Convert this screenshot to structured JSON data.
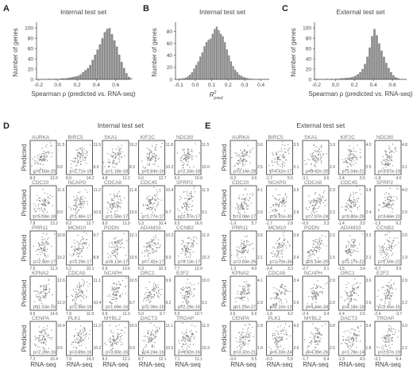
{
  "histograms": [
    {
      "label": "A",
      "title": "Internal test set",
      "ylabel": "Number of genes",
      "xlabel": "Spearman ρ (predicted vs. RNA-seq)",
      "xticks": [
        "-0.2",
        "0.0",
        "0.2",
        "0.4",
        "0.6"
      ],
      "xtick_values": [
        -0.2,
        0.0,
        0.2,
        0.4,
        0.6
      ],
      "yticks": [
        "0",
        "20",
        "40",
        "60",
        "80",
        "100"
      ],
      "ytick_values": [
        0,
        20,
        40,
        60,
        80,
        100
      ],
      "xlim": [
        -0.22,
        0.75
      ],
      "ylim": [
        0,
        105
      ]
    },
    {
      "label": "B",
      "title": "Internal test set",
      "ylabel": "Number of genes",
      "xlabel_main": "R",
      "xlabel_sup": "2",
      "xlabel_sub": "pred",
      "xticks": [
        "-0.1",
        "0.0",
        "0.1",
        "0.2",
        "0.3",
        "0.4"
      ],
      "xtick_values": [
        -0.1,
        0.0,
        0.1,
        0.2,
        0.3,
        0.4
      ],
      "yticks": [
        "0",
        "20",
        "40",
        "60",
        "80"
      ],
      "ytick_values": [
        0,
        20,
        40,
        60,
        80
      ],
      "xlim": [
        -0.12,
        0.45
      ],
      "ylim": [
        0,
        90
      ]
    },
    {
      "label": "C",
      "title": "External test set",
      "ylabel": "Number of genes",
      "xlabel": "Spearman ρ (predicted vs. RNA-seq)",
      "xticks": [
        "-0.2",
        "0.0",
        "0.2",
        "0.4",
        "0.6"
      ],
      "xtick_values": [
        -0.2,
        0.0,
        0.2,
        0.4,
        0.6
      ],
      "yticks": [
        "0",
        "20",
        "40",
        "60",
        "80",
        "100"
      ],
      "ytick_values": [
        0,
        20,
        40,
        60,
        80,
        100
      ],
      "xlim": [
        -0.22,
        0.75
      ],
      "ylim": [
        0,
        105
      ]
    }
  ],
  "chart_data": [
    {
      "type": "bar",
      "panel": "A",
      "title": "Internal test set",
      "xlabel": "Spearman ρ (predicted vs. RNA-seq)",
      "ylabel": "Number of genes",
      "bin_start": -0.1,
      "bin_width": 0.025,
      "values": [
        1,
        0,
        1,
        1,
        0,
        2,
        2,
        2,
        3,
        4,
        5,
        6,
        7,
        10,
        14,
        18,
        22,
        28,
        38,
        48,
        58,
        68,
        80,
        92,
        98,
        100,
        88,
        76,
        64,
        48,
        34,
        22,
        12,
        5,
        2
      ]
    },
    {
      "type": "bar",
      "panel": "B",
      "title": "Internal test set",
      "xlabel": "R2pred",
      "ylabel": "Number of genes",
      "bin_start": -0.1,
      "bin_width": 0.0125,
      "values": [
        1,
        1,
        2,
        3,
        5,
        8,
        12,
        18,
        24,
        30,
        38,
        45,
        55,
        62,
        66,
        68,
        76,
        84,
        88,
        82,
        76,
        72,
        62,
        50,
        40,
        30,
        22,
        16,
        12,
        8,
        6,
        4,
        3,
        2,
        1,
        1
      ]
    },
    {
      "type": "bar",
      "panel": "C",
      "title": "External test set",
      "xlabel": "Spearman ρ (predicted vs. RNA-seq)",
      "ylabel": "Number of genes",
      "bin_start": -0.1,
      "bin_width": 0.025,
      "values": [
        1,
        0,
        1,
        0,
        1,
        1,
        2,
        2,
        3,
        3,
        4,
        5,
        7,
        10,
        14,
        20,
        30,
        44,
        62,
        84,
        98,
        86,
        70,
        56,
        44,
        32,
        22,
        14,
        8,
        4,
        2
      ]
    }
  ],
  "scatter_panels": [
    {
      "label": "D",
      "title": "Internal test set",
      "ylabel": "Predicted",
      "xlabel": "RNA-seq",
      "genes": [
        {
          "name": "AURKA",
          "p": "p=6.50e-20",
          "xt": [
            "8.0",
            "12.6"
          ],
          "yt": [
            "11.5",
            "9.0"
          ],
          "corr": 0.55
        },
        {
          "name": "BIRC5",
          "p": "p=2.71e-19",
          "xt": [
            "8.0",
            "14.2"
          ],
          "yt": [
            "11.5",
            "9.9"
          ],
          "corr": 0.55
        },
        {
          "name": "SKA1",
          "p": "p=1.18e-18",
          "xt": [
            "4.8",
            "11.2"
          ],
          "yt": [
            "10.2",
            "8.3"
          ],
          "corr": 0.5
        },
        {
          "name": "KIF2C",
          "p": "p=2.24e-16",
          "xt": [
            "6.0",
            "12.7"
          ],
          "yt": [
            "11.8",
            "10.2"
          ],
          "corr": 0.45
        },
        {
          "name": "NDC80",
          "p": "p=2.33e-18",
          "xt": [
            "6.0",
            "10.8"
          ],
          "yt": [
            "11.5",
            "10.0"
          ],
          "corr": 0.5
        },
        {
          "name": "CDC20",
          "p": "p=5.04e-18",
          "xt": [
            "7.8",
            "13.2"
          ],
          "yt": [
            "11.5",
            "9.0"
          ],
          "corr": 0.5
        },
        {
          "name": "NCAPG",
          "p": "p=1.46e-17",
          "xt": [
            "8.2",
            "12.7"
          ],
          "yt": [
            "11.2",
            "10.5"
          ],
          "corr": 0.5
        },
        {
          "name": "CDCA8",
          "p": "p=1.59e-17",
          "xt": [
            "8.0",
            "11.9"
          ],
          "yt": [
            "11.8",
            "10.6"
          ],
          "corr": 0.5
        },
        {
          "name": "CDC45",
          "p": "p=1.77e-17",
          "xt": [
            "5.3",
            "10.4"
          ],
          "yt": [
            "10.4",
            "9.7"
          ],
          "corr": 0.45
        },
        {
          "name": "SFRP2",
          "p": "p=2.37e-17",
          "xt": [
            "6.5",
            "16.6"
          ],
          "yt": [
            "11.5",
            "9.1"
          ],
          "corr": 0.35
        },
        {
          "name": "PRR11",
          "p": "p=2.92e-17",
          "xt": [
            "7.5",
            "11.3"
          ],
          "yt": [
            "10.8",
            "10.2"
          ],
          "corr": 0.45
        },
        {
          "name": "MCM10",
          "p": "p=3.29e-17",
          "xt": [
            "5.2",
            "10.1"
          ],
          "yt": [
            "9.7",
            "8.8"
          ],
          "corr": 0.45
        },
        {
          "name": "PODN",
          "p": "p=5.13e-17",
          "xt": [
            "6.9",
            "13.6"
          ],
          "yt": [
            "12.1",
            "10.5"
          ],
          "corr": 0.45
        },
        {
          "name": "ADAM33",
          "p": "p=7.42e-17",
          "xt": [
            "6.3",
            "10.3"
          ],
          "yt": [
            "10.2",
            "9.0"
          ],
          "corr": 0.45
        },
        {
          "name": "CCNB2",
          "p": "p=9.13e-17",
          "xt": [
            "7.7",
            "12.0"
          ],
          "yt": [
            "11.0",
            "10.3"
          ],
          "corr": 0.45
        },
        {
          "name": "KPNA2",
          "p": "p=1.53e-16",
          "xt": [
            "9.6",
            "14.5"
          ],
          "yt": [
            "12.6",
            "12.0"
          ],
          "corr": 0.45
        },
        {
          "name": "CDCA5",
          "p": "p=1.66e-16",
          "xt": [
            "7.9",
            "11.9"
          ],
          "yt": [
            "11.1",
            "10.4"
          ],
          "corr": 0.45
        },
        {
          "name": "NCAPH",
          "p": "p=1.69e-16",
          "xt": [
            "6.9",
            "11.3"
          ],
          "yt": [
            "10.5",
            "9.7"
          ],
          "corr": 0.45
        },
        {
          "name": "ORC1",
          "p": "p=2.06e-16",
          "xt": [
            "5.0",
            "9.7"
          ],
          "yt": [
            "9.9",
            "9.2"
          ],
          "corr": 0.45
        },
        {
          "name": "E2F2",
          "p": "p=2.29e-16",
          "xt": [
            "5.5",
            "10.7"
          ],
          "yt": [
            "10.0",
            "9.1"
          ],
          "corr": 0.4
        },
        {
          "name": "CENPA",
          "p": "p=2.39e-16",
          "xt": [
            "7.2",
            "10.4"
          ],
          "yt": [
            "10.4",
            "9.5"
          ],
          "corr": 0.45
        },
        {
          "name": "PLK1",
          "p": "p=3.09e-16",
          "xt": [
            "7.9",
            "14.3"
          ],
          "yt": [
            "11.3",
            "10.2"
          ],
          "corr": 0.45
        },
        {
          "name": "MYBL2",
          "p": "p=3.83e-16",
          "xt": [
            "8.2",
            "12.1"
          ],
          "yt": [
            "10.9",
            "9.9"
          ],
          "corr": 0.45
        },
        {
          "name": "DACT3",
          "p": "p=4.24e-16",
          "xt": [
            "8.7",
            "12.1"
          ],
          "yt": [
            "11.1",
            "10.5"
          ],
          "corr": 0.45
        },
        {
          "name": "TROAP",
          "p": "p=4.82e-16",
          "xt": [
            "7.1",
            "11.1"
          ],
          "yt": [
            "11.0",
            "10.3"
          ],
          "corr": 0.45
        }
      ]
    },
    {
      "label": "E",
      "title": "External test set",
      "ylabel": "Predicted",
      "xlabel": "RNA-seq",
      "genes": [
        {
          "name": "AURKA",
          "p": "p=3.14e-28",
          "xt": [
            "-0.2",
            "3.6"
          ],
          "yt": [
            "3.6",
            "2.5"
          ],
          "corr": 0.55
        },
        {
          "name": "BIRC5",
          "p": "p=4.62e-17",
          "xt": [
            "-1.7",
            "5.5"
          ],
          "yt": [
            "3.5",
            "2.1"
          ],
          "corr": 0.5
        },
        {
          "name": "SKA1",
          "p": "p=8.42e-20",
          "xt": [
            "-3.1",
            "3.6"
          ],
          "yt": [
            "3.9",
            "2.9"
          ],
          "corr": 0.5
        },
        {
          "name": "KIF2C",
          "p": "p=1.04e-21",
          "xt": [
            "-1.4",
            "5.5"
          ],
          "yt": [
            "4.0",
            "2.5"
          ],
          "corr": 0.5
        },
        {
          "name": "NDC80",
          "p": "p=3.87e-19",
          "xt": [
            "-1.8",
            "4.0"
          ],
          "yt": [
            "4.8",
            "3.1"
          ],
          "corr": 0.5
        },
        {
          "name": "CDC20",
          "p": "p=3.08e-17",
          "xt": [
            "-1.0",
            "5.7"
          ],
          "yt": [
            "4.1",
            "2.6"
          ],
          "corr": 0.5
        },
        {
          "name": "NCAPG",
          "p": "p=4.91e-30",
          "xt": [
            "-1.7",
            "2.8"
          ],
          "yt": [
            "3.5",
            "2.8"
          ],
          "corr": 0.6
        },
        {
          "name": "CDCA8",
          "p": "p=7.07e-24",
          "xt": [
            "-0.5",
            "3.3"
          ],
          "yt": [
            "2.9",
            "2.2"
          ],
          "corr": 0.55
        },
        {
          "name": "CDC45",
          "p": "p=9.80e-28",
          "xt": [
            "-1.4",
            "3.5"
          ],
          "yt": [
            "3.8",
            "2.4"
          ],
          "corr": 0.55
        },
        {
          "name": "SFRP2",
          "p": "p=3.44e-10",
          "xt": [
            "-1.5",
            "6.2"
          ],
          "yt": [
            "4.0",
            "2.0"
          ],
          "corr": 0.3
        },
        {
          "name": "PRR11",
          "p": "p=3.83e-26",
          "xt": [
            "-1.3",
            "4.0"
          ],
          "yt": [
            "3.5",
            "2.1"
          ],
          "corr": 0.55
        },
        {
          "name": "MCM10",
          "p": "p=1.70e-34",
          "xt": [
            "-3.4",
            "3.3"
          ],
          "yt": [
            "3.8",
            "2.4"
          ],
          "corr": 0.6
        },
        {
          "name": "PODN",
          "p": "p=5.14e-20",
          "xt": [
            "-2.7",
            "3.1"
          ],
          "yt": [
            "2.5",
            "1.5"
          ],
          "corr": 0.5
        },
        {
          "name": "ADAM33",
          "p": "p=1.17e-22",
          "xt": [
            "-1.5",
            "3.4"
          ],
          "yt": [
            "3.2",
            "2.1"
          ],
          "corr": 0.5
        },
        {
          "name": "CCNB2",
          "p": "p=1.50e-22",
          "xt": [
            "-0.7",
            "3.6"
          ],
          "yt": [
            "3.6",
            "1.9"
          ],
          "corr": 0.5
        },
        {
          "name": "KPNA2",
          "p": "p=1.25e-27",
          "xt": [
            "2.6",
            "6.6"
          ],
          "yt": [
            "4.1",
            "2.9"
          ],
          "corr": 0.55
        },
        {
          "name": "CDCA5",
          "p": "p=2.10e-13",
          "xt": [
            "-1.9",
            "4.2"
          ],
          "yt": [
            "3.4",
            "2.6"
          ],
          "corr": 0.4
        },
        {
          "name": "NCAPH",
          "p": "p=4.44e-34",
          "xt": [
            "-2.4",
            "3.4"
          ],
          "yt": [
            "2.9",
            "2.0"
          ],
          "corr": 0.6
        },
        {
          "name": "ORC1",
          "p": "p=4.18e-18",
          "xt": [
            "-2.4",
            "2.5"
          ],
          "yt": [
            "3.6",
            "2.6"
          ],
          "corr": 0.5
        },
        {
          "name": "E2F2",
          "p": "p=2.65e-15",
          "xt": [
            "-2.4",
            "-3.7"
          ],
          "yt": [
            "2.9",
            "2.2"
          ],
          "corr": 0.4
        },
        {
          "name": "CENPA",
          "p": "p=3.32e-21",
          "xt": [
            "-3.0",
            "5.5"
          ],
          "yt": [
            "2.8",
            "1.9"
          ],
          "corr": 0.5
        },
        {
          "name": "PLK1",
          "p": "p=6.33e-24",
          "xt": [
            "-0.3",
            "5.9"
          ],
          "yt": [
            "4.0",
            "2.6"
          ],
          "corr": 0.55
        },
        {
          "name": "MYBL2",
          "p": "p=4.39e-26",
          "xt": [
            "-1.7",
            "0.4"
          ],
          "yt": [
            "3.8",
            "2.5"
          ],
          "corr": 0.55
        },
        {
          "name": "DACT3",
          "p": "p=1.78e-14",
          "xt": [
            "-1.3",
            "4.5"
          ],
          "yt": [
            "3.4",
            "1.8"
          ],
          "corr": 0.4
        },
        {
          "name": "TROAP",
          "p": "p=2.07e-19",
          "xt": [
            "-3.1",
            "6.4"
          ],
          "yt": [
            "3.0",
            "2.2"
          ],
          "corr": 0.5
        }
      ]
    }
  ],
  "colors": {
    "bar": "#8c8c8c",
    "point": "#6e6e6e",
    "axis": "#333333"
  }
}
